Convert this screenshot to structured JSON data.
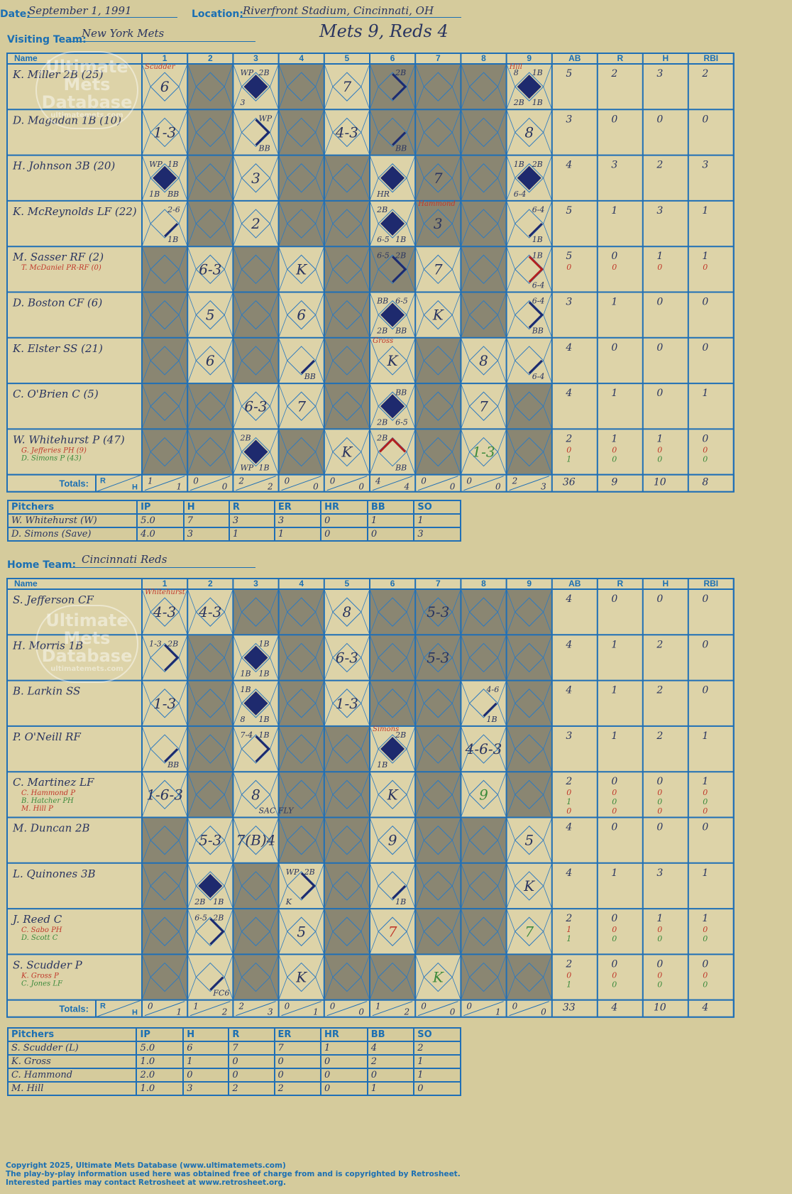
{
  "header": {
    "date_label": "Date:",
    "date": "September 1, 1991",
    "location_label": "Location:",
    "location": "Riverfront Stadium, Cincinnati, OH",
    "visiting_label": "Visiting Team:",
    "visiting_team": "New York Mets",
    "home_label": "Home Team:",
    "home_team": "Cincinnati Reds",
    "score": "Mets 9, Reds 4"
  },
  "watermark": {
    "line1": "Ultimate",
    "line2": "Mets",
    "line3": "Database",
    "url": "ultimatemets.com"
  },
  "columns": {
    "name": "Name",
    "innings": [
      "1",
      "2",
      "3",
      "4",
      "5",
      "6",
      "7",
      "8",
      "9"
    ],
    "stats": [
      "AB",
      "R",
      "H",
      "RBI"
    ],
    "totals": "Totals:",
    "r": "R",
    "h": "H"
  },
  "visitors": {
    "colors": {
      "ink": "#2a3560",
      "sub_red": "#c0392b",
      "sub_green": "#3c8a3c",
      "shade": "#8a8672",
      "cell": "#ddd3a8",
      "hit": "#1e2a6e"
    },
    "players": [
      {
        "name": "K. Miller 2B (25)",
        "subs": [],
        "stats": [
          [
            "5",
            "2",
            "3",
            "2"
          ]
        ]
      },
      {
        "name": "D. Magadan 1B (10)",
        "subs": [],
        "stats": [
          [
            "3",
            "0",
            "0",
            "0"
          ]
        ]
      },
      {
        "name": "H. Johnson 3B (20)",
        "subs": [],
        "stats": [
          [
            "4",
            "3",
            "2",
            "3"
          ]
        ]
      },
      {
        "name": "K. McReynolds LF (22)",
        "subs": [],
        "stats": [
          [
            "5",
            "1",
            "3",
            "1"
          ]
        ]
      },
      {
        "name": "M. Sasser RF (2)",
        "subs": [
          "T. McDaniel PR-RF (0)"
        ],
        "stats": [
          [
            "5",
            "0",
            "1",
            "1"
          ],
          [
            "0",
            "0",
            "0",
            "0"
          ]
        ]
      },
      {
        "name": "D. Boston CF (6)",
        "subs": [],
        "stats": [
          [
            "3",
            "1",
            "0",
            "0"
          ]
        ]
      },
      {
        "name": "K. Elster SS (21)",
        "subs": [],
        "stats": [
          [
            "4",
            "0",
            "0",
            "0"
          ]
        ]
      },
      {
        "name": "C. O'Brien C (5)",
        "subs": [],
        "stats": [
          [
            "4",
            "1",
            "0",
            "1"
          ]
        ]
      },
      {
        "name": "W. Whitehurst P (47)",
        "subs": [
          "G. Jefferies PH (9)",
          "D. Simons P (43)"
        ],
        "stats": [
          [
            "2",
            "1",
            "1",
            "0"
          ],
          [
            "0",
            "0",
            "0",
            "0"
          ],
          [
            "1",
            "0",
            "0",
            "0"
          ]
        ]
      }
    ],
    "totals_rh": [
      [
        "1",
        "1"
      ],
      [
        "0",
        "0"
      ],
      [
        "2",
        "2"
      ],
      [
        "0",
        "0"
      ],
      [
        "0",
        "0"
      ],
      [
        "4",
        "4"
      ],
      [
        "0",
        "0"
      ],
      [
        "0",
        "0"
      ],
      [
        "2",
        "3"
      ]
    ],
    "totals": [
      "36",
      "9",
      "10",
      "8"
    ],
    "plays": [
      {
        "row": 0,
        "inn": 0,
        "text": "6",
        "note": "Scudder"
      },
      {
        "row": 0,
        "inn": 2,
        "text": "",
        "tl": "WP",
        "tr": "2B",
        "bl": "3",
        "diamond": "full"
      },
      {
        "row": 0,
        "inn": 4,
        "text": "7"
      },
      {
        "row": 0,
        "inn": 5,
        "text": "",
        "tr": "2B",
        "diamond": "half"
      },
      {
        "row": 0,
        "inn": 8,
        "text": "",
        "tl": "8",
        "tr": "1B",
        "bl": "2B",
        "br": "1B",
        "diamond": "full",
        "note": "Hill"
      },
      {
        "row": 1,
        "inn": 0,
        "text": "1-3"
      },
      {
        "row": 1,
        "inn": 2,
        "text": "",
        "tr": "WP",
        "br": "BB",
        "diamond": "half"
      },
      {
        "row": 1,
        "inn": 4,
        "text": "4-3"
      },
      {
        "row": 1,
        "inn": 5,
        "text": "",
        "br": "BB",
        "diamond": "quarter"
      },
      {
        "row": 1,
        "inn": 8,
        "text": "8"
      },
      {
        "row": 2,
        "inn": 0,
        "text": "",
        "tl": "WP",
        "tr": "1B",
        "bl": "1B",
        "br": "BB",
        "diamond": "full"
      },
      {
        "row": 2,
        "inn": 2,
        "text": "3"
      },
      {
        "row": 2,
        "inn": 5,
        "text": "",
        "bl": "HR",
        "diamond": "full"
      },
      {
        "row": 2,
        "inn": 6,
        "text": "7"
      },
      {
        "row": 2,
        "inn": 8,
        "text": "",
        "tl": "1B",
        "tr": "2B",
        "bl": "6-4",
        "diamond": "full"
      },
      {
        "row": 3,
        "inn": 0,
        "text": "",
        "tr": "2-6",
        "br": "1B",
        "diamond": "quarter"
      },
      {
        "row": 3,
        "inn": 2,
        "text": "2"
      },
      {
        "row": 3,
        "inn": 5,
        "text": "",
        "tl": "2B",
        "bl": "6-5",
        "br": "1B",
        "diamond": "full"
      },
      {
        "row": 3,
        "inn": 6,
        "text": "3",
        "note": "Hammond"
      },
      {
        "row": 3,
        "inn": 8,
        "text": "",
        "tr": "6-4",
        "br": "1B",
        "diamond": "quarter"
      },
      {
        "row": 4,
        "inn": 1,
        "text": "6-3"
      },
      {
        "row": 4,
        "inn": 3,
        "text": "K"
      },
      {
        "row": 4,
        "inn": 5,
        "text": "",
        "tl": "6-5",
        "tr": "2B",
        "diamond": "half"
      },
      {
        "row": 4,
        "inn": 6,
        "text": "7"
      },
      {
        "row": 4,
        "inn": 8,
        "text": "",
        "tr": "1B",
        "br": "6-4",
        "diamond": "halfred"
      },
      {
        "row": 5,
        "inn": 1,
        "text": "5"
      },
      {
        "row": 5,
        "inn": 3,
        "text": "6"
      },
      {
        "row": 5,
        "inn": 5,
        "text": "",
        "tl": "BB",
        "tr": "6-5",
        "bl": "2B",
        "br": "BB",
        "diamond": "full"
      },
      {
        "row": 5,
        "inn": 6,
        "text": "K"
      },
      {
        "row": 5,
        "inn": 8,
        "text": "",
        "tr": "6-4",
        "br": "BB",
        "diamond": "half"
      },
      {
        "row": 6,
        "inn": 1,
        "text": "6"
      },
      {
        "row": 6,
        "inn": 3,
        "text": "",
        "br": "BB",
        "diamond": "quarter"
      },
      {
        "row": 6,
        "inn": 5,
        "text": "K",
        "note": "Gross"
      },
      {
        "row": 6,
        "inn": 7,
        "text": "8"
      },
      {
        "row": 6,
        "inn": 8,
        "text": "",
        "br": "6-4",
        "diamond": "quarter"
      },
      {
        "row": 7,
        "inn": 2,
        "text": "6-3"
      },
      {
        "row": 7,
        "inn": 3,
        "text": "7"
      },
      {
        "row": 7,
        "inn": 5,
        "text": "",
        "tr": "BB",
        "bl": "2B",
        "br": "6-5",
        "diamond": "full"
      },
      {
        "row": 7,
        "inn": 7,
        "text": "7"
      },
      {
        "row": 8,
        "inn": 2,
        "text": "",
        "tl": "2B",
        "bl": "WP",
        "br": "1B",
        "diamond": "full"
      },
      {
        "row": 8,
        "inn": 4,
        "text": "K"
      },
      {
        "row": 8,
        "inn": 5,
        "text": "",
        "tl": "2B",
        "br": "BB",
        "diamond": "redhalf"
      },
      {
        "row": 8,
        "inn": 7,
        "text": "1-3",
        "green": true
      }
    ],
    "shaded": [
      [
        1,
        3,
        5,
        6,
        7
      ],
      [
        1,
        3,
        5,
        6,
        7
      ],
      [
        1,
        3,
        4,
        6,
        7
      ],
      [
        1,
        3,
        4,
        6,
        7
      ],
      [
        0,
        2,
        4,
        5,
        7
      ],
      [
        0,
        2,
        4,
        7
      ],
      [
        0,
        2,
        4,
        6
      ],
      [
        0,
        1,
        4,
        6,
        8
      ],
      [
        0,
        1,
        3,
        6,
        8
      ]
    ]
  },
  "visitor_pitchers": {
    "headers": [
      "Pitchers",
      "IP",
      "H",
      "R",
      "ER",
      "HR",
      "BB",
      "SO"
    ],
    "rows": [
      [
        "W. Whitehurst (W)",
        "5.0",
        "7",
        "3",
        "3",
        "0",
        "1",
        "1"
      ],
      [
        "D. Simons (Save)",
        "4.0",
        "3",
        "1",
        "1",
        "0",
        "0",
        "3"
      ]
    ]
  },
  "home": {
    "players": [
      {
        "name": "S. Jefferson CF",
        "subs": [],
        "stats": [
          [
            "4",
            "0",
            "0",
            "0"
          ]
        ]
      },
      {
        "name": "H. Morris 1B",
        "subs": [],
        "stats": [
          [
            "4",
            "1",
            "2",
            "0"
          ]
        ]
      },
      {
        "name": "B. Larkin SS",
        "subs": [],
        "stats": [
          [
            "4",
            "1",
            "2",
            "0"
          ]
        ]
      },
      {
        "name": "P. O'Neill RF",
        "subs": [],
        "stats": [
          [
            "3",
            "1",
            "2",
            "1"
          ]
        ]
      },
      {
        "name": "C. Martinez LF",
        "subs": [
          "C. Hammond P",
          "B. Hatcher PH",
          "M. Hill P"
        ],
        "stats": [
          [
            "2",
            "0",
            "0",
            "1"
          ],
          [
            "0",
            "0",
            "0",
            "0"
          ],
          [
            "1",
            "0",
            "0",
            "0"
          ],
          [
            "0",
            "0",
            "0",
            "0"
          ]
        ]
      },
      {
        "name": "M. Duncan 2B",
        "subs": [],
        "stats": [
          [
            "4",
            "0",
            "0",
            "0"
          ]
        ]
      },
      {
        "name": "L. Quinones 3B",
        "subs": [],
        "stats": [
          [
            "4",
            "1",
            "3",
            "1"
          ]
        ]
      },
      {
        "name": "J. Reed C",
        "subs": [
          "C. Sabo PH",
          "D. Scott C"
        ],
        "stats": [
          [
            "2",
            "0",
            "1",
            "1"
          ],
          [
            "1",
            "0",
            "0",
            "0"
          ],
          [
            "1",
            "0",
            "0",
            "0"
          ]
        ]
      },
      {
        "name": "S. Scudder P",
        "subs": [
          "K. Gross P",
          "C. Jones LF"
        ],
        "stats": [
          [
            "2",
            "0",
            "0",
            "0"
          ],
          [
            "0",
            "0",
            "0",
            "0"
          ],
          [
            "1",
            "0",
            "0",
            "0"
          ]
        ]
      }
    ],
    "totals_rh": [
      [
        "0",
        "1"
      ],
      [
        "1",
        "2"
      ],
      [
        "2",
        "3"
      ],
      [
        "0",
        "1"
      ],
      [
        "0",
        "0"
      ],
      [
        "1",
        "2"
      ],
      [
        "0",
        "0"
      ],
      [
        "0",
        "1"
      ],
      [
        "0",
        "0"
      ]
    ],
    "totals": [
      "33",
      "4",
      "10",
      "4"
    ],
    "plays": [
      {
        "row": 0,
        "inn": 0,
        "text": "4-3",
        "note": "Whitehurst"
      },
      {
        "row": 0,
        "inn": 1,
        "text": "4-3"
      },
      {
        "row": 0,
        "inn": 4,
        "text": "8"
      },
      {
        "row": 0,
        "inn": 6,
        "text": "5-3"
      },
      {
        "row": 1,
        "inn": 0,
        "text": "",
        "tl": "1-3",
        "tr": "2B",
        "diamond": "half"
      },
      {
        "row": 1,
        "inn": 2,
        "text": "",
        "tr": "1B",
        "bl": "1B",
        "br": "1B",
        "diamond": "full"
      },
      {
        "row": 1,
        "inn": 4,
        "text": "6-3"
      },
      {
        "row": 1,
        "inn": 6,
        "text": "5-3"
      },
      {
        "row": 2,
        "inn": 0,
        "text": "1-3"
      },
      {
        "row": 2,
        "inn": 2,
        "text": "",
        "tl": "1B",
        "bl": "8",
        "br": "1B",
        "diamond": "full"
      },
      {
        "row": 2,
        "inn": 4,
        "text": "1-3"
      },
      {
        "row": 2,
        "inn": 7,
        "text": "",
        "tr": "4-6",
        "br": "1B",
        "diamond": "quarter"
      },
      {
        "row": 3,
        "inn": 0,
        "text": "",
        "br": "BB",
        "diamond": "quarter"
      },
      {
        "row": 3,
        "inn": 2,
        "text": "",
        "tl": "7-4",
        "tr": "1B",
        "diamond": "half"
      },
      {
        "row": 3,
        "inn": 5,
        "text": "",
        "tr": "2B",
        "bl": "1B",
        "diamond": "full",
        "note": "Simons"
      },
      {
        "row": 3,
        "inn": 7,
        "text": "4-6-3"
      },
      {
        "row": 4,
        "inn": 0,
        "text": "1-6-3"
      },
      {
        "row": 4,
        "inn": 2,
        "text": "8",
        "br": "SAC FLY"
      },
      {
        "row": 4,
        "inn": 5,
        "text": "K"
      },
      {
        "row": 4,
        "inn": 7,
        "text": "9",
        "green": true
      },
      {
        "row": 5,
        "inn": 1,
        "text": "5-3"
      },
      {
        "row": 5,
        "inn": 2,
        "text": "7(B)4"
      },
      {
        "row": 5,
        "inn": 5,
        "text": "9"
      },
      {
        "row": 5,
        "inn": 8,
        "text": "5"
      },
      {
        "row": 6,
        "inn": 1,
        "text": "",
        "bl": "2B",
        "br": "1B",
        "diamond": "full"
      },
      {
        "row": 6,
        "inn": 3,
        "text": "",
        "tl": "WP",
        "tr": "2B",
        "bl": "K",
        "diamond": "half"
      },
      {
        "row": 6,
        "inn": 5,
        "text": "",
        "br": "1B",
        "diamond": "quarter"
      },
      {
        "row": 6,
        "inn": 8,
        "text": "K"
      },
      {
        "row": 7,
        "inn": 1,
        "text": "",
        "tl": "6-5",
        "tr": "2B",
        "diamond": "half"
      },
      {
        "row": 7,
        "inn": 3,
        "text": "5"
      },
      {
        "row": 7,
        "inn": 5,
        "text": "7",
        "red": true
      },
      {
        "row": 7,
        "inn": 8,
        "text": "7",
        "green": true
      },
      {
        "row": 8,
        "inn": 1,
        "text": "",
        "br": "FC6",
        "diamond": "quarter"
      },
      {
        "row": 8,
        "inn": 3,
        "text": "K"
      },
      {
        "row": 8,
        "inn": 6,
        "text": "K",
        "green": true
      }
    ],
    "shaded": [
      [
        2,
        3,
        5,
        6,
        7,
        8
      ],
      [
        1,
        3,
        5,
        6,
        7,
        8
      ],
      [
        1,
        3,
        5,
        6,
        8
      ],
      [
        1,
        3,
        4,
        6,
        8
      ],
      [
        1,
        3,
        4,
        6,
        8
      ],
      [
        0,
        3,
        4,
        6,
        7
      ],
      [
        0,
        2,
        4,
        6,
        7
      ],
      [
        0,
        2,
        4,
        6,
        7
      ],
      [
        0,
        2,
        4,
        5,
        7,
        8
      ]
    ]
  },
  "home_pitchers": {
    "headers": [
      "Pitchers",
      "IP",
      "H",
      "R",
      "ER",
      "HR",
      "BB",
      "SO"
    ],
    "rows": [
      [
        "S. Scudder (L)",
        "5.0",
        "6",
        "7",
        "7",
        "1",
        "4",
        "2"
      ],
      [
        "K. Gross",
        "1.0",
        "1",
        "0",
        "0",
        "0",
        "2",
        "1"
      ],
      [
        "C. Hammond",
        "2.0",
        "0",
        "0",
        "0",
        "0",
        "0",
        "1"
      ],
      [
        "M. Hill",
        "1.0",
        "3",
        "2",
        "2",
        "0",
        "1",
        "0"
      ]
    ]
  },
  "footer": {
    "copyright": "Copyright 2025, Ultimate Mets Database (www.ultimatemets.com)",
    "line2": "The play-by-play information used here was obtained free of charge from and is copyrighted by Retrosheet.",
    "line3": "Interested parties may contact Retrosheet at www.retrosheet.org."
  }
}
